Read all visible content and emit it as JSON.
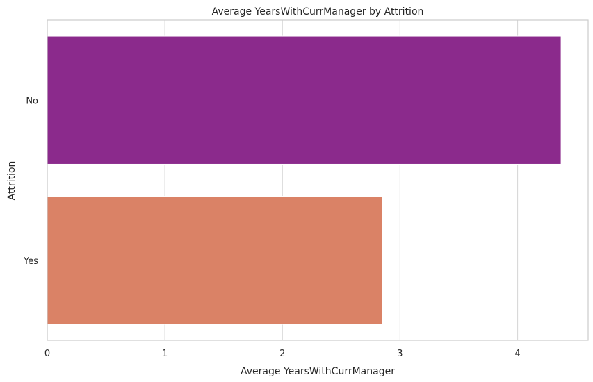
{
  "chart_data": {
    "type": "bar",
    "orientation": "horizontal",
    "title": "Average YearsWithCurrManager by Attrition",
    "xlabel": "Average YearsWithCurrManager",
    "ylabel": "Attrition",
    "categories": [
      "No",
      "Yes"
    ],
    "values": [
      4.37,
      2.85
    ],
    "colors": [
      "#8b2a8c",
      "#da8266"
    ],
    "xlim": [
      0,
      4.6
    ],
    "xticks": [
      0,
      1,
      2,
      3,
      4
    ],
    "grid": "vertical",
    "legend": "none"
  }
}
